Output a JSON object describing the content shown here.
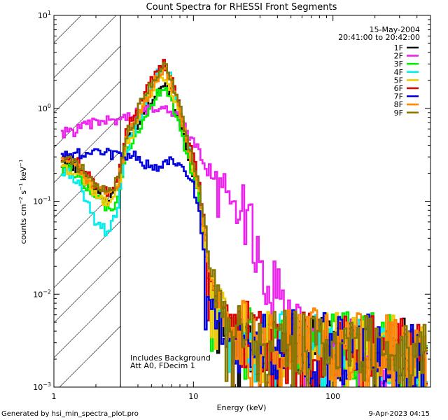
{
  "colors": {
    "background": "#ffffff",
    "axes": "#000000",
    "text": "#000000"
  },
  "chart_data": {
    "type": "line",
    "title": "Count Spectra for RHESSI Front Segments",
    "xlabel": "Energy (keV)",
    "ylabel_parts": {
      "base": "counts cm",
      "exp1": "−2",
      "mid": " s",
      "exp2": "−1",
      "tail": " keV",
      "exp3": "−1"
    },
    "x_scale": "log",
    "y_scale": "log",
    "xlim": [
      1,
      500
    ],
    "ylim": [
      0.001,
      10
    ],
    "x_ticks": [
      {
        "value": 1,
        "label": "1"
      },
      {
        "value": 10,
        "label": "10"
      },
      {
        "value": 100,
        "label": "100"
      }
    ],
    "y_ticks": [
      {
        "value": 0.001,
        "label": "10",
        "exp": "−3"
      },
      {
        "value": 0.01,
        "label": "10",
        "exp": "−2"
      },
      {
        "value": 0.1,
        "label": "10",
        "exp": "−1"
      },
      {
        "value": 1,
        "label": "10",
        "exp": "0"
      },
      {
        "value": 10,
        "label": "10",
        "exp": "1"
      }
    ],
    "date": "15-May-2004",
    "time_range": "20:41:00 to 20:42:00",
    "excluded_region": {
      "x_min": 1,
      "x_max": 3
    },
    "annotation_lines": [
      "Includes Background",
      "Att A0, FDecim 1"
    ],
    "footer_left": "Generated by hsi_min_spectra_plot.pro",
    "footer_right": "9-Apr-2023 04:15",
    "anchor_energies": [
      1.3,
      1.6,
      2.0,
      2.5,
      2.9,
      3.3,
      3.8,
      4.5,
      5.5,
      6.3,
      7.0,
      8.0,
      9.0,
      10,
      11,
      12,
      13,
      15,
      18,
      20,
      25,
      30,
      40,
      50,
      60,
      80,
      100,
      150,
      200,
      300,
      450
    ],
    "series": [
      {
        "name": "1F",
        "color": "#000000",
        "values": [
          0.25,
          0.2,
          0.13,
          0.1,
          0.15,
          0.45,
          0.6,
          1.0,
          1.6,
          1.9,
          1.3,
          0.7,
          0.35,
          0.2,
          0.12,
          0.04,
          0.015,
          0.008,
          0.004,
          0.003,
          0.003,
          0.0022,
          0.0025,
          0.0028,
          0.003,
          0.0028,
          0.0026,
          0.0028,
          0.0025,
          0.0024,
          0.0018
        ]
      },
      {
        "name": "2F",
        "color": "#ee22ee",
        "values": [
          0.55,
          0.62,
          0.7,
          0.74,
          0.76,
          0.8,
          0.85,
          0.95,
          1.05,
          1.08,
          0.95,
          0.75,
          0.55,
          0.42,
          0.35,
          0.28,
          0.25,
          0.2,
          0.14,
          0.095,
          0.05,
          0.02,
          0.009,
          0.004,
          0.003,
          0.0025,
          0.002,
          0.0024,
          0.0023,
          0.0022,
          0.0016
        ]
      },
      {
        "name": "3F",
        "color": "#00ee00",
        "values": [
          0.22,
          0.17,
          0.11,
          0.08,
          0.1,
          0.3,
          0.45,
          0.8,
          1.4,
          1.8,
          1.2,
          0.6,
          0.3,
          0.18,
          0.1,
          0.035,
          0.012,
          0.007,
          0.004,
          0.0035,
          0.003,
          0.0025,
          0.0026,
          0.0028,
          0.0032,
          0.003,
          0.0028,
          0.0027,
          0.0026,
          0.0025,
          0.002
        ]
      },
      {
        "name": "4F",
        "color": "#00eeee",
        "values": [
          0.2,
          0.13,
          0.06,
          0.045,
          0.09,
          0.35,
          0.55,
          1.2,
          2.4,
          3.0,
          2.0,
          1.0,
          0.45,
          0.25,
          0.15,
          0.05,
          0.016,
          0.008,
          0.005,
          0.004,
          0.003,
          0.0025,
          0.0028,
          0.003,
          0.003,
          0.0029,
          0.0027,
          0.0028,
          0.0026,
          0.0025,
          0.002
        ]
      },
      {
        "name": "5F",
        "color": "#eecc00",
        "values": [
          0.22,
          0.18,
          0.12,
          0.09,
          0.14,
          0.4,
          0.6,
          1.1,
          2.0,
          2.3,
          1.6,
          0.8,
          0.4,
          0.22,
          0.13,
          0.045,
          0.015,
          0.009,
          0.005,
          0.004,
          0.0033,
          0.0027,
          0.0028,
          0.003,
          0.0031,
          0.003,
          0.0027,
          0.0028,
          0.0026,
          0.0025,
          0.0019
        ]
      },
      {
        "name": "6F",
        "color": "#dd0000",
        "values": [
          0.3,
          0.24,
          0.16,
          0.12,
          0.2,
          0.6,
          0.85,
          1.5,
          2.5,
          3.0,
          2.1,
          1.0,
          0.5,
          0.28,
          0.16,
          0.055,
          0.018,
          0.009,
          0.005,
          0.004,
          0.0035,
          0.0028,
          0.003,
          0.0032,
          0.0032,
          0.003,
          0.0028,
          0.0029,
          0.0027,
          0.0026,
          0.002
        ]
      },
      {
        "name": "7F",
        "color": "#0000dd",
        "values": [
          0.32,
          0.32,
          0.32,
          0.32,
          0.32,
          0.32,
          0.3,
          0.25,
          0.22,
          0.24,
          0.3,
          0.23,
          0.2,
          0.15,
          0.08,
          0.025,
          0.008,
          0.005,
          0.003,
          0.0025,
          0.003,
          0.0025,
          0.0026,
          0.0028,
          0.003,
          0.0028,
          0.0026,
          0.0027,
          0.0025,
          0.0024,
          0.0018
        ]
      },
      {
        "name": "8F",
        "color": "#ff8800",
        "values": [
          0.26,
          0.2,
          0.14,
          0.11,
          0.16,
          0.48,
          0.7,
          1.2,
          2.1,
          2.5,
          1.8,
          0.9,
          0.45,
          0.24,
          0.14,
          0.05,
          0.016,
          0.009,
          0.005,
          0.004,
          0.0034,
          0.0027,
          0.0029,
          0.0031,
          0.0031,
          0.003,
          0.0028,
          0.0028,
          0.0026,
          0.0025,
          0.002
        ]
      },
      {
        "name": "9F",
        "color": "#887700",
        "values": [
          0.28,
          0.22,
          0.15,
          0.12,
          0.18,
          0.52,
          0.78,
          1.4,
          2.4,
          2.9,
          2.0,
          1.0,
          0.5,
          0.26,
          0.15,
          0.052,
          0.017,
          0.009,
          0.005,
          0.004,
          0.0035,
          0.0028,
          0.003,
          0.0031,
          0.0032,
          0.003,
          0.0028,
          0.0029,
          0.0027,
          0.0026,
          0.002
        ]
      }
    ]
  }
}
